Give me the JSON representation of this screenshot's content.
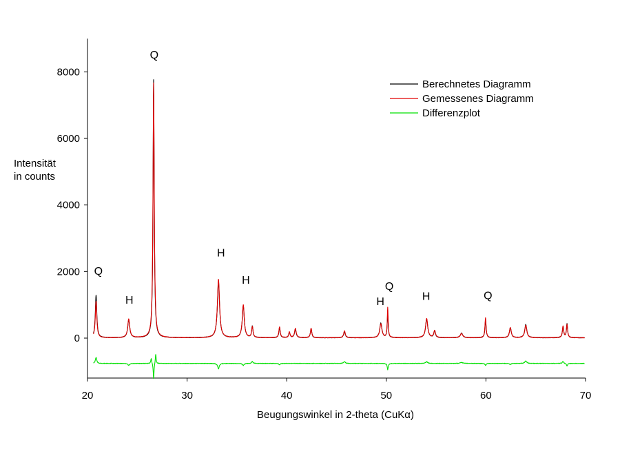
{
  "chart_data": {
    "type": "line",
    "xlabel": "Beugungswinkel in 2-theta (CuKα)",
    "ylabel_line1": "Intensität",
    "ylabel_line2": "in counts",
    "xlim": [
      20,
      70
    ],
    "ylim": [
      -1200,
      9000
    ],
    "xticks": [
      20,
      30,
      40,
      50,
      60,
      70
    ],
    "yticks": [
      0,
      2000,
      4000,
      6000,
      8000
    ],
    "grid": false,
    "legend_position": "top-right",
    "colors": {
      "berechnet": "#000000",
      "gemessen": "#e00000",
      "differenz": "#00e000"
    },
    "series": [
      {
        "name": "Berechnetes Diagramm",
        "color": "#000000",
        "baseline": 10,
        "peaks": [
          [
            20.86,
            1280,
            0.09
          ],
          [
            24.14,
            540,
            0.12
          ],
          [
            26.64,
            7750,
            0.07
          ],
          [
            33.15,
            1700,
            0.13
          ],
          [
            35.64,
            960,
            0.12
          ],
          [
            36.55,
            340,
            0.08
          ],
          [
            39.28,
            300,
            0.08
          ],
          [
            40.27,
            160,
            0.08
          ],
          [
            40.87,
            260,
            0.1
          ],
          [
            42.45,
            280,
            0.08
          ],
          [
            45.8,
            180,
            0.1
          ],
          [
            49.45,
            440,
            0.13
          ],
          [
            50.14,
            700,
            0.06
          ],
          [
            54.05,
            560,
            0.13
          ],
          [
            54.85,
            200,
            0.1
          ],
          [
            57.55,
            140,
            0.14
          ],
          [
            59.96,
            540,
            0.07
          ],
          [
            62.45,
            300,
            0.11
          ],
          [
            64.0,
            400,
            0.12
          ],
          [
            67.74,
            330,
            0.08
          ],
          [
            68.14,
            420,
            0.07
          ]
        ]
      },
      {
        "name": "Gemessenes Diagramm",
        "color": "#e00000",
        "baseline": 10,
        "peaks": [
          [
            20.86,
            1100,
            0.09
          ],
          [
            24.14,
            560,
            0.12
          ],
          [
            26.64,
            7650,
            0.075
          ],
          [
            33.15,
            1760,
            0.13
          ],
          [
            35.64,
            980,
            0.12
          ],
          [
            36.55,
            330,
            0.08
          ],
          [
            39.28,
            330,
            0.08
          ],
          [
            40.27,
            170,
            0.08
          ],
          [
            40.87,
            280,
            0.1
          ],
          [
            42.45,
            290,
            0.08
          ],
          [
            45.8,
            210,
            0.1
          ],
          [
            49.45,
            420,
            0.13
          ],
          [
            50.14,
            900,
            0.055
          ],
          [
            54.05,
            580,
            0.13
          ],
          [
            54.85,
            220,
            0.1
          ],
          [
            57.55,
            130,
            0.14
          ],
          [
            59.96,
            600,
            0.07
          ],
          [
            62.45,
            310,
            0.11
          ],
          [
            64.0,
            380,
            0.12
          ],
          [
            67.74,
            350,
            0.08
          ],
          [
            68.14,
            400,
            0.07
          ]
        ]
      },
      {
        "name": "Differenzplot",
        "color": "#00e000",
        "offset": -760,
        "features": [
          [
            20.86,
            180,
            0.08
          ],
          [
            24.14,
            -60,
            0.1
          ],
          [
            26.4,
            160,
            0.06
          ],
          [
            26.64,
            -480,
            0.05
          ],
          [
            26.85,
            300,
            0.05
          ],
          [
            33.15,
            -160,
            0.1
          ],
          [
            35.64,
            -60,
            0.1
          ],
          [
            36.55,
            60,
            0.08
          ],
          [
            39.28,
            -40,
            0.08
          ],
          [
            45.8,
            50,
            0.1
          ],
          [
            50.14,
            -190,
            0.06
          ],
          [
            54.05,
            50,
            0.12
          ],
          [
            57.55,
            30,
            0.15
          ],
          [
            59.96,
            -60,
            0.07
          ],
          [
            62.45,
            -30,
            0.1
          ],
          [
            64.0,
            70,
            0.12
          ],
          [
            67.74,
            60,
            0.08
          ],
          [
            68.14,
            -80,
            0.07
          ]
        ]
      }
    ],
    "annotations": [
      {
        "text": "Q",
        "x": 21.1,
        "y": 1900
      },
      {
        "text": "H",
        "x": 24.2,
        "y": 1030
      },
      {
        "text": "Q",
        "x": 26.7,
        "y": 8400
      },
      {
        "text": "H",
        "x": 33.4,
        "y": 2450
      },
      {
        "text": "H",
        "x": 35.9,
        "y": 1630
      },
      {
        "text": "H",
        "x": 49.4,
        "y": 990
      },
      {
        "text": "Q",
        "x": 50.3,
        "y": 1450
      },
      {
        "text": "H",
        "x": 54.0,
        "y": 1150
      },
      {
        "text": "Q",
        "x": 60.2,
        "y": 1170
      }
    ]
  }
}
